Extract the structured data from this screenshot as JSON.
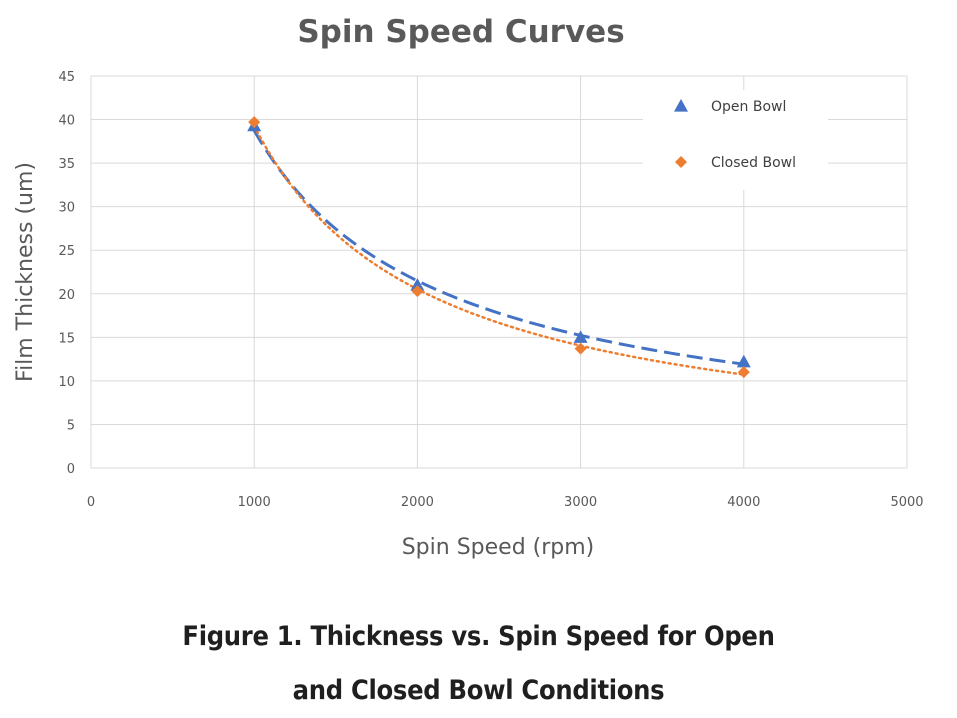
{
  "caption": {
    "line1": "Figure 1. Thickness vs. Spin Speed for Open",
    "line2": "and Closed Bowl Conditions"
  },
  "chart_data": {
    "type": "scatter",
    "title": "Spin Speed Curves",
    "xlabel": "Spin Speed (rpm)",
    "ylabel": "Film Thickness (um)",
    "xlim": [
      0,
      5000
    ],
    "ylim": [
      0,
      45
    ],
    "xticks": [
      0,
      1000,
      2000,
      3000,
      4000,
      5000
    ],
    "yticks": [
      0,
      5,
      10,
      15,
      20,
      25,
      30,
      35,
      40,
      45
    ],
    "grid": true,
    "legend_position": "top-right",
    "series": [
      {
        "name": "Open Bowl",
        "marker": "triangle",
        "color": "#4472c4",
        "trendline": "power",
        "trendline_style": "dashed",
        "x": [
          1000,
          2000,
          3000,
          4000
        ],
        "y": [
          39.3,
          21.0,
          15.0,
          12.2
        ]
      },
      {
        "name": "Closed Bowl",
        "marker": "diamond",
        "color": "#ed7d31",
        "trendline": "power",
        "trendline_style": "dotted",
        "x": [
          1000,
          2000,
          3000,
          4000
        ],
        "y": [
          39.7,
          20.3,
          13.7,
          11.0
        ]
      }
    ]
  }
}
